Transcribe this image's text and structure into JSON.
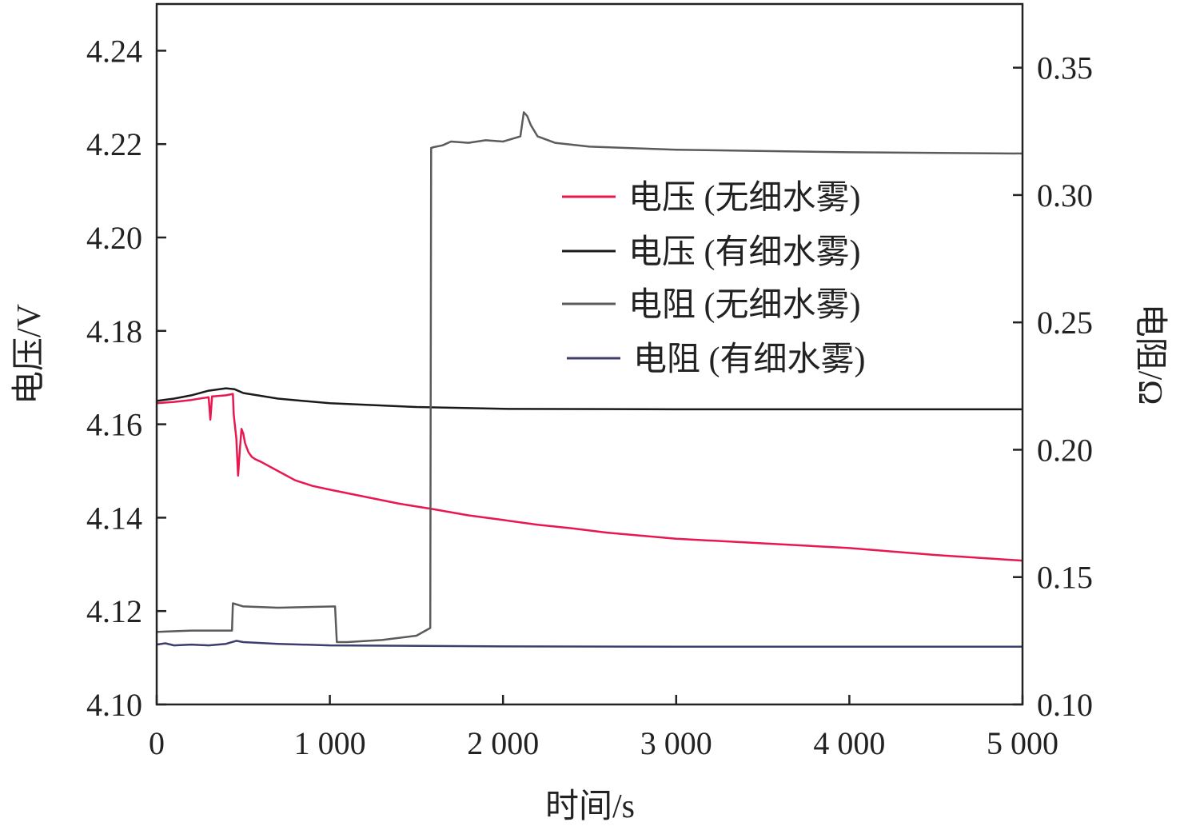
{
  "chart_data": {
    "type": "line",
    "title": "",
    "xlabel": "时间/s",
    "ylabel_left": "电压/V",
    "ylabel_right": "电阻/Ω",
    "xlim": [
      0,
      5000
    ],
    "ylim_left": [
      4.1,
      4.25
    ],
    "ylim_right": [
      0.1,
      0.375
    ],
    "x_ticks": [
      {
        "value": 0,
        "label": "0"
      },
      {
        "value": 1000,
        "label": "1 000"
      },
      {
        "value": 2000,
        "label": "2 000"
      },
      {
        "value": 3000,
        "label": "3 000"
      },
      {
        "value": 4000,
        "label": "4 000"
      },
      {
        "value": 5000,
        "label": "5 000"
      }
    ],
    "y_left_ticks": [
      {
        "value": 4.1,
        "label": "4.10"
      },
      {
        "value": 4.12,
        "label": "4.12"
      },
      {
        "value": 4.14,
        "label": "4.14"
      },
      {
        "value": 4.16,
        "label": "4.16"
      },
      {
        "value": 4.18,
        "label": "4.18"
      },
      {
        "value": 4.2,
        "label": "4.20"
      },
      {
        "value": 4.22,
        "label": "4.22"
      },
      {
        "value": 4.24,
        "label": "4.24"
      }
    ],
    "y_right_ticks": [
      {
        "value": 0.1,
        "label": "0.10"
      },
      {
        "value": 0.15,
        "label": "0.15"
      },
      {
        "value": 0.2,
        "label": "0.20"
      },
      {
        "value": 0.25,
        "label": "0.25"
      },
      {
        "value": 0.3,
        "label": "0.30"
      },
      {
        "value": 0.35,
        "label": "0.35"
      }
    ],
    "grid": false,
    "legend_position": "top-right",
    "series": [
      {
        "name": "电压 (无细水雾)",
        "axis": "left",
        "color": "#e8174f",
        "x": [
          0,
          100,
          200,
          300,
          310,
          320,
          330,
          400,
          440,
          445,
          460,
          470,
          480,
          490,
          500,
          510,
          520,
          530,
          550,
          570,
          600,
          700,
          800,
          900,
          1000,
          1200,
          1400,
          1600,
          1800,
          2000,
          2200,
          2400,
          2600,
          3000,
          3500,
          4000,
          4500,
          5000
        ],
        "y": [
          4.1645,
          4.1648,
          4.1652,
          4.1658,
          4.161,
          4.166,
          4.166,
          4.1662,
          4.1665,
          4.162,
          4.157,
          4.149,
          4.1545,
          4.159,
          4.158,
          4.156,
          4.155,
          4.154,
          4.153,
          4.1525,
          4.152,
          4.15,
          4.148,
          4.1468,
          4.146,
          4.1445,
          4.143,
          4.1418,
          4.1405,
          4.1395,
          4.1385,
          4.1377,
          4.1368,
          4.1355,
          4.1345,
          4.1335,
          4.132,
          4.1308
        ]
      },
      {
        "name": "电压 (有细水雾)",
        "axis": "left",
        "color": "#1a1a1a",
        "x": [
          0,
          100,
          200,
          300,
          400,
          450,
          500,
          700,
          1000,
          1500,
          2000,
          3000,
          4000,
          5000
        ],
        "y": [
          4.165,
          4.1655,
          4.1662,
          4.1672,
          4.1677,
          4.1675,
          4.1667,
          4.1655,
          4.1645,
          4.1637,
          4.1633,
          4.1632,
          4.1632,
          4.1632
        ]
      },
      {
        "name": "电阻 (无细水雾)",
        "axis": "right",
        "color": "#5b5b5b",
        "x": [
          0,
          200,
          435,
          440,
          500,
          700,
          900,
          1030,
          1040,
          1100,
          1300,
          1500,
          1580,
          1585,
          1600,
          1650,
          1700,
          1800,
          1900,
          2000,
          2100,
          2120,
          2140,
          2160,
          2200,
          2300,
          2500,
          3000,
          4000,
          5000
        ],
        "y": [
          0.1285,
          0.129,
          0.129,
          0.1397,
          0.1385,
          0.138,
          0.1383,
          0.1385,
          0.1245,
          0.1245,
          0.1253,
          0.127,
          0.13,
          0.3185,
          0.3188,
          0.3195,
          0.321,
          0.3205,
          0.3215,
          0.321,
          0.323,
          0.3325,
          0.331,
          0.3275,
          0.323,
          0.3205,
          0.319,
          0.3178,
          0.3168,
          0.3163
        ]
      },
      {
        "name": "电阻 (有细水雾)",
        "axis": "right",
        "color": "#3d3d6e",
        "x": [
          0,
          50,
          100,
          200,
          300,
          400,
          460,
          500,
          700,
          1000,
          2000,
          3000,
          5000
        ],
        "y": [
          0.1235,
          0.124,
          0.1232,
          0.1235,
          0.1232,
          0.1238,
          0.125,
          0.1245,
          0.1238,
          0.1232,
          0.1228,
          0.1227,
          0.1227
        ]
      }
    ]
  }
}
